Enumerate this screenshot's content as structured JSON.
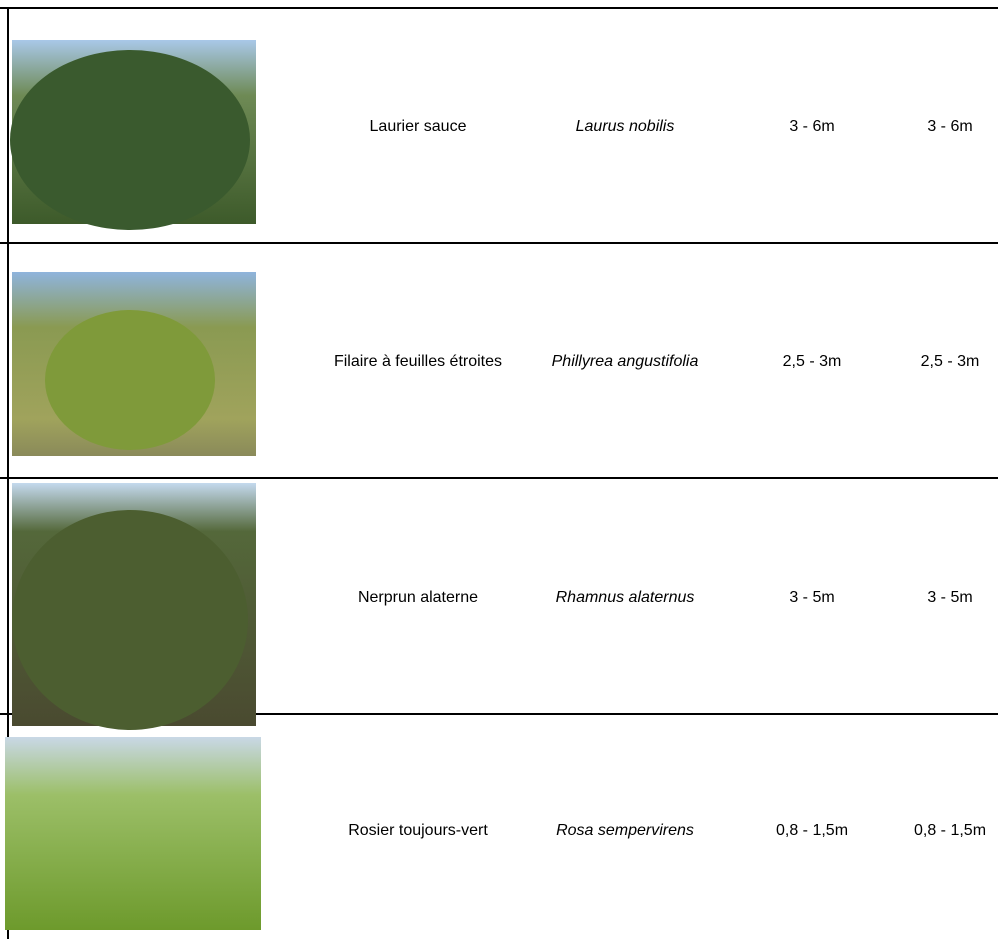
{
  "table": {
    "rows": [
      [
        "Laurier sauce",
        "Laurus nobilis",
        "3 - 6m",
        "3 - 6m"
      ],
      [
        "Filaire à feuilles étroites",
        "Phillyrea angustifolia",
        "2,5 - 3m",
        "2,5 - 3m"
      ],
      [
        "Nerprun alaterne",
        "Rhamnus alaternus",
        "3 - 5m",
        "3 - 5m"
      ],
      [
        "Rosier toujours-vert",
        "Rosa sempervirens",
        "0,8 - 1,5m",
        "0,8 - 1,5m"
      ]
    ]
  }
}
